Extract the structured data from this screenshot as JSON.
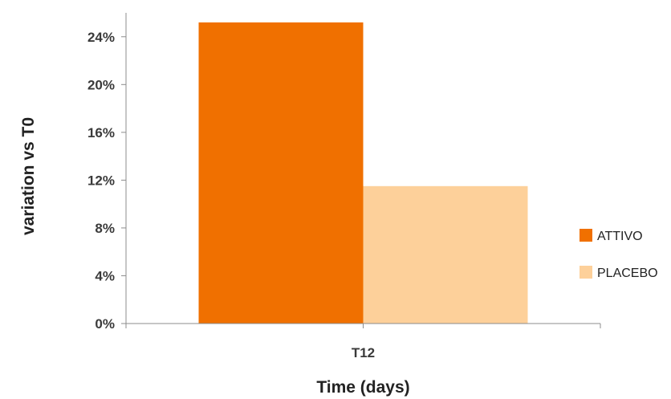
{
  "chart_data": {
    "type": "bar",
    "categories": [
      "T12"
    ],
    "series": [
      {
        "name": "ATTIVO",
        "values": [
          25.2
        ],
        "color": "#f07000"
      },
      {
        "name": "PLACEBO",
        "values": [
          11.5
        ],
        "color": "#fdd09a"
      }
    ],
    "xlabel": "Time (days)",
    "ylabel": "variation vs T0",
    "ylim": [
      0,
      26
    ],
    "yticks": [
      0,
      4,
      8,
      12,
      16,
      20,
      24
    ],
    "ytick_labels": [
      "0%",
      "4%",
      "8%",
      "12%",
      "16%",
      "20%",
      "24%"
    ],
    "grid": false,
    "legend_position": "right"
  }
}
